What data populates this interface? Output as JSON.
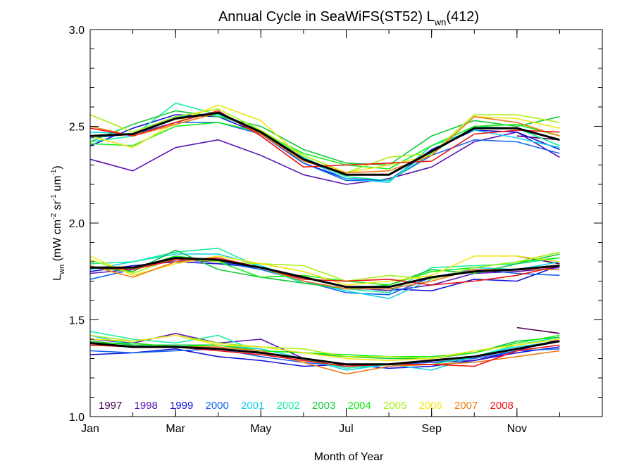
{
  "chart_data": {
    "type": "line",
    "title": "Annual Cycle in SeaWiFS(ST52) L",
    "title_sub": "wn",
    "title_suffix": "(412)",
    "xlabel": "Month of Year",
    "ylabel": {
      "main": "L",
      "sub": "wn",
      "units_open": " (mW cm",
      "sup1": "-2",
      "mid": " sr",
      "sup2": "-1",
      "units_close": " um",
      "sup3": "-1",
      "end": ")"
    },
    "xlim": [
      1,
      13
    ],
    "ylim": [
      1.0,
      3.0
    ],
    "x_ticks": [
      {
        "value": 1,
        "label": "Jan"
      },
      {
        "value": 3,
        "label": "Mar"
      },
      {
        "value": 5,
        "label": "May"
      },
      {
        "value": 7,
        "label": "Jul"
      },
      {
        "value": 9,
        "label": "Sep"
      },
      {
        "value": 11,
        "label": "Nov"
      }
    ],
    "y_ticks": [
      {
        "value": 1.0,
        "label": "1.0"
      },
      {
        "value": 1.5,
        "label": "1.5"
      },
      {
        "value": 2.0,
        "label": "2.0"
      },
      {
        "value": 2.5,
        "label": "2.5"
      },
      {
        "value": 3.0,
        "label": "3.0"
      }
    ],
    "x": [
      1,
      2,
      3,
      4,
      5,
      6,
      7,
      8,
      9,
      10,
      11,
      12
    ],
    "legend_placement": "bottom-left",
    "mean_color": "#000000",
    "groups": [
      {
        "mean": [
          2.45,
          2.46,
          2.54,
          2.57,
          2.47,
          2.33,
          2.25,
          2.25,
          2.37,
          2.49,
          2.49,
          2.43
        ],
        "series": [
          {
            "name": "1997",
            "color": "#4b0050",
            "values": [
              null,
              null,
              null,
              null,
              null,
              null,
              null,
              null,
              null,
              null,
              2.45,
              2.43
            ]
          },
          {
            "name": "1998",
            "color": "#5a14b4",
            "values": [
              2.33,
              2.27,
              2.39,
              2.43,
              2.35,
              2.25,
              2.2,
              2.23,
              2.29,
              2.42,
              2.47,
              2.34
            ]
          },
          {
            "name": "1999",
            "color": "#1414dc",
            "values": [
              2.4,
              2.49,
              2.56,
              2.55,
              2.46,
              2.31,
              2.23,
              2.22,
              2.38,
              2.48,
              2.47,
              2.38
            ]
          },
          {
            "name": "2000",
            "color": "#1464f0",
            "values": [
              2.44,
              2.46,
              2.52,
              2.52,
              2.46,
              2.31,
              2.22,
              2.22,
              2.35,
              2.43,
              2.42,
              2.36
            ]
          },
          {
            "name": "2001",
            "color": "#14d2f0",
            "values": [
              2.47,
              2.46,
              2.55,
              2.56,
              2.47,
              2.33,
              2.23,
              2.21,
              2.4,
              2.48,
              2.44,
              2.39
            ]
          },
          {
            "name": "2002",
            "color": "#14f0a0",
            "values": [
              2.42,
              2.45,
              2.62,
              2.56,
              2.48,
              2.34,
              2.24,
              2.22,
              2.36,
              2.5,
              2.49,
              2.4
            ]
          },
          {
            "name": "2003",
            "color": "#14c83c",
            "values": [
              2.42,
              2.51,
              2.58,
              2.55,
              2.5,
              2.38,
              2.31,
              2.3,
              2.45,
              2.53,
              2.5,
              2.55
            ]
          },
          {
            "name": "2004",
            "color": "#14f014",
            "values": [
              2.41,
              2.4,
              2.5,
              2.52,
              2.47,
              2.36,
              2.3,
              2.28,
              2.4,
              2.5,
              2.51,
              2.45
            ]
          },
          {
            "name": "2005",
            "color": "#aaf014",
            "values": [
              2.56,
              2.47,
              2.55,
              2.59,
              2.48,
              2.35,
              2.26,
              2.34,
              2.36,
              2.56,
              2.56,
              2.52
            ]
          },
          {
            "name": "2006",
            "color": "#f0e614",
            "values": [
              2.45,
              2.39,
              2.52,
              2.61,
              2.53,
              2.33,
              2.26,
              2.3,
              2.35,
              2.55,
              2.54,
              2.49
            ]
          },
          {
            "name": "2007",
            "color": "#f07814",
            "values": [
              2.5,
              2.45,
              2.51,
              2.57,
              2.46,
              2.32,
              2.26,
              2.27,
              2.35,
              2.55,
              2.52,
              2.45
            ]
          },
          {
            "name": "2008",
            "color": "#f01414",
            "values": [
              2.49,
              2.45,
              2.52,
              2.58,
              2.45,
              2.29,
              2.3,
              2.31,
              2.32,
              2.46,
              2.48,
              2.47
            ]
          }
        ]
      },
      {
        "mean": [
          1.77,
          1.77,
          1.82,
          1.81,
          1.77,
          1.72,
          1.67,
          1.67,
          1.72,
          1.75,
          1.76,
          1.78
        ],
        "series": [
          {
            "name": "1997",
            "color": "#4b0050",
            "values": [
              null,
              null,
              null,
              null,
              null,
              null,
              null,
              null,
              null,
              null,
              1.83,
              1.79
            ]
          },
          {
            "name": "1998",
            "color": "#5a14b4",
            "values": [
              1.74,
              1.76,
              1.81,
              1.8,
              1.77,
              1.72,
              1.67,
              1.65,
              1.68,
              1.74,
              1.75,
              1.77
            ]
          },
          {
            "name": "1999",
            "color": "#1414dc",
            "values": [
              1.75,
              1.78,
              1.8,
              1.79,
              1.77,
              1.7,
              1.66,
              1.66,
              1.65,
              1.71,
              1.7,
              1.78
            ]
          },
          {
            "name": "2000",
            "color": "#1464f0",
            "values": [
              1.71,
              1.76,
              1.83,
              1.8,
              1.76,
              1.7,
              1.64,
              1.63,
              1.72,
              1.76,
              1.74,
              1.73
            ]
          },
          {
            "name": "2001",
            "color": "#14d2f0",
            "values": [
              1.76,
              1.8,
              1.84,
              1.84,
              1.78,
              1.7,
              1.65,
              1.61,
              1.71,
              1.77,
              1.76,
              1.8
            ]
          },
          {
            "name": "2002",
            "color": "#14f0a0",
            "values": [
              1.79,
              1.8,
              1.85,
              1.87,
              1.77,
              1.69,
              1.66,
              1.64,
              1.77,
              1.78,
              1.79,
              1.82
            ]
          },
          {
            "name": "2003",
            "color": "#14c83c",
            "values": [
              1.77,
              1.75,
              1.86,
              1.76,
              1.72,
              1.69,
              1.66,
              1.68,
              1.76,
              1.74,
              1.79,
              1.84
            ]
          },
          {
            "name": "2004",
            "color": "#14f014",
            "values": [
              1.77,
              1.76,
              1.83,
              1.8,
              1.72,
              1.73,
              1.7,
              1.68,
              1.75,
              1.77,
              1.8,
              1.82
            ]
          },
          {
            "name": "2005",
            "color": "#aaf014",
            "values": [
              1.81,
              1.74,
              1.82,
              1.8,
              1.79,
              1.78,
              1.7,
              1.73,
              1.71,
              1.77,
              1.8,
              1.85
            ]
          },
          {
            "name": "2006",
            "color": "#f0e614",
            "values": [
              1.83,
              1.73,
              1.79,
              1.83,
              1.79,
              1.75,
              1.68,
              1.7,
              1.73,
              1.83,
              1.83,
              1.8
            ]
          },
          {
            "name": "2007",
            "color": "#f07814",
            "values": [
              1.78,
              1.72,
              1.8,
              1.82,
              1.77,
              1.7,
              1.66,
              1.66,
              1.7,
              1.76,
              1.76,
              1.76
            ]
          },
          {
            "name": "2008",
            "color": "#f01414",
            "values": [
              1.77,
              1.76,
              1.81,
              1.82,
              1.77,
              1.71,
              1.7,
              1.71,
              1.68,
              1.7,
              1.73,
              1.78
            ]
          }
        ]
      },
      {
        "mean": [
          1.38,
          1.36,
          1.36,
          1.35,
          1.33,
          1.3,
          1.27,
          1.27,
          1.29,
          1.31,
          1.35,
          1.39
        ],
        "series": [
          {
            "name": "1997",
            "color": "#4b0050",
            "values": [
              null,
              null,
              null,
              null,
              null,
              null,
              null,
              null,
              null,
              null,
              1.46,
              1.43
            ]
          },
          {
            "name": "1998",
            "color": "#5a14b4",
            "values": [
              1.4,
              1.38,
              1.43,
              1.38,
              1.4,
              1.3,
              1.27,
              1.27,
              1.28,
              1.29,
              1.34,
              1.4
            ]
          },
          {
            "name": "1999",
            "color": "#1414dc",
            "values": [
              1.32,
              1.33,
              1.35,
              1.31,
              1.29,
              1.26,
              1.27,
              1.25,
              1.26,
              1.29,
              1.33,
              1.36
            ]
          },
          {
            "name": "2000",
            "color": "#1464f0",
            "values": [
              1.34,
              1.33,
              1.34,
              1.35,
              1.31,
              1.28,
              1.26,
              1.27,
              1.28,
              1.3,
              1.34,
              1.35
            ]
          },
          {
            "name": "2001",
            "color": "#14d2f0",
            "values": [
              1.42,
              1.37,
              1.37,
              1.37,
              1.35,
              1.3,
              1.24,
              1.27,
              1.24,
              1.31,
              1.36,
              1.39
            ]
          },
          {
            "name": "2002",
            "color": "#14f0a0",
            "values": [
              1.44,
              1.4,
              1.38,
              1.42,
              1.33,
              1.3,
              1.25,
              1.27,
              1.27,
              1.31,
              1.37,
              1.41
            ]
          },
          {
            "name": "2003",
            "color": "#14c83c",
            "values": [
              1.39,
              1.37,
              1.37,
              1.37,
              1.34,
              1.33,
              1.31,
              1.3,
              1.3,
              1.33,
              1.39,
              1.41
            ]
          },
          {
            "name": "2004",
            "color": "#14f014",
            "values": [
              1.38,
              1.38,
              1.36,
              1.37,
              1.34,
              1.33,
              1.32,
              1.31,
              1.31,
              1.33,
              1.38,
              1.42
            ]
          },
          {
            "name": "2005",
            "color": "#aaf014",
            "values": [
              1.42,
              1.39,
              1.42,
              1.38,
              1.36,
              1.35,
              1.31,
              1.31,
              1.3,
              1.34,
              1.37,
              1.4
            ]
          },
          {
            "name": "2006",
            "color": "#f0e614",
            "values": [
              1.4,
              1.39,
              1.42,
              1.37,
              1.36,
              1.33,
              1.3,
              1.29,
              1.3,
              1.34,
              1.37,
              1.4
            ]
          },
          {
            "name": "2007",
            "color": "#f07814",
            "values": [
              1.37,
              1.36,
              1.36,
              1.36,
              1.34,
              1.28,
              1.22,
              1.26,
              1.27,
              1.28,
              1.31,
              1.34
            ]
          },
          {
            "name": "2008",
            "color": "#f01414",
            "values": [
              1.37,
              1.36,
              1.36,
              1.34,
              1.32,
              1.29,
              1.26,
              1.27,
              1.27,
              1.26,
              1.34,
              1.37
            ]
          }
        ]
      }
    ]
  }
}
